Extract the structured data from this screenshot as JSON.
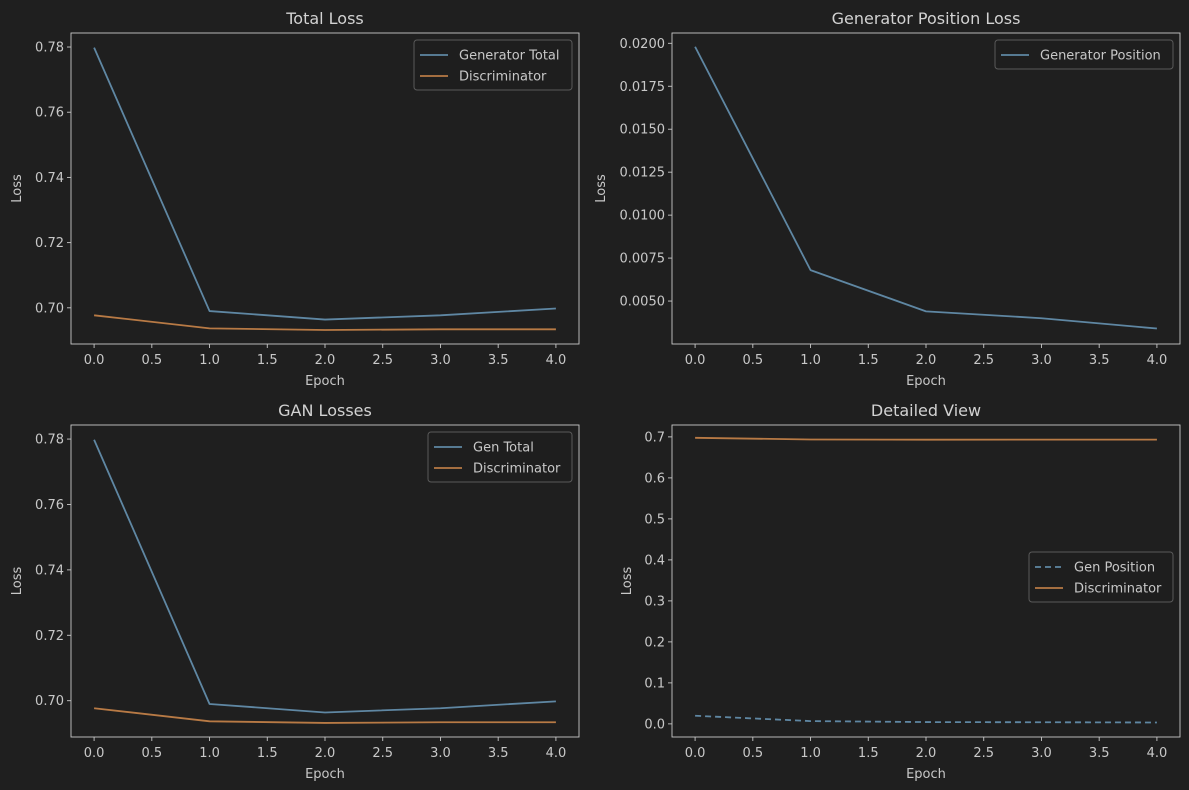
{
  "colors": {
    "background": "#1f1f1f",
    "axes_frame": "#c8c8c8",
    "text": "#c8c8c8",
    "title": "#d2d2d2",
    "legend_bg": "#1f1f1f",
    "legend_border": "#5a5a5a",
    "blue": "#5f87a3",
    "orange": "#b87a45"
  },
  "chart_data": [
    {
      "type": "line",
      "title": "Total Loss",
      "xlabel": "Epoch",
      "ylabel": "Loss",
      "x": [
        0,
        1,
        2,
        3,
        4
      ],
      "xlim": [
        -0.2,
        4.2
      ],
      "ylim": [
        0.6889,
        0.7843
      ],
      "xticks": [
        0.0,
        0.5,
        1.0,
        1.5,
        2.0,
        2.5,
        3.0,
        3.5,
        4.0
      ],
      "xtick_labels": [
        "0.0",
        "0.5",
        "1.0",
        "1.5",
        "2.0",
        "2.5",
        "3.0",
        "3.5",
        "4.0"
      ],
      "yticks": [
        0.7,
        0.72,
        0.74,
        0.76,
        0.78
      ],
      "ytick_labels": [
        "0.70",
        "0.72",
        "0.74",
        "0.76",
        "0.78"
      ],
      "grid": false,
      "legend": "upper right",
      "series": [
        {
          "name": "Generator Total",
          "values": [
            0.7798,
            0.699,
            0.6964,
            0.6977,
            0.6998
          ],
          "color": "blue",
          "style": "solid"
        },
        {
          "name": "Discriminator",
          "values": [
            0.6977,
            0.6937,
            0.6932,
            0.6934,
            0.6934
          ],
          "color": "orange",
          "style": "solid"
        }
      ]
    },
    {
      "type": "line",
      "title": "Generator Position Loss",
      "xlabel": "Epoch",
      "ylabel": "Loss",
      "x": [
        0,
        1,
        2,
        3,
        4
      ],
      "xlim": [
        -0.2,
        4.2
      ],
      "ylim": [
        0.0025,
        0.0206
      ],
      "xticks": [
        0.0,
        0.5,
        1.0,
        1.5,
        2.0,
        2.5,
        3.0,
        3.5,
        4.0
      ],
      "xtick_labels": [
        "0.0",
        "0.5",
        "1.0",
        "1.5",
        "2.0",
        "2.5",
        "3.0",
        "3.5",
        "4.0"
      ],
      "yticks": [
        0.005,
        0.0075,
        0.01,
        0.0125,
        0.015,
        0.0175,
        0.02
      ],
      "ytick_labels": [
        "0.0050",
        "0.0075",
        "0.0100",
        "0.0125",
        "0.0150",
        "0.0175",
        "0.0200"
      ],
      "grid": false,
      "legend": "upper right",
      "series": [
        {
          "name": "Generator Position",
          "values": [
            0.0198,
            0.0068,
            0.0044,
            0.004,
            0.0034
          ],
          "color": "blue",
          "style": "solid"
        }
      ]
    },
    {
      "type": "line",
      "title": "GAN Losses",
      "xlabel": "Epoch",
      "ylabel": "Loss",
      "x": [
        0,
        1,
        2,
        3,
        4
      ],
      "xlim": [
        -0.2,
        4.2
      ],
      "ylim": [
        0.6889,
        0.7843
      ],
      "xticks": [
        0.0,
        0.5,
        1.0,
        1.5,
        2.0,
        2.5,
        3.0,
        3.5,
        4.0
      ],
      "xtick_labels": [
        "0.0",
        "0.5",
        "1.0",
        "1.5",
        "2.0",
        "2.5",
        "3.0",
        "3.5",
        "4.0"
      ],
      "yticks": [
        0.7,
        0.72,
        0.74,
        0.76,
        0.78
      ],
      "ytick_labels": [
        "0.70",
        "0.72",
        "0.74",
        "0.76",
        "0.78"
      ],
      "grid": false,
      "legend": "upper right",
      "series": [
        {
          "name": "Gen Total",
          "values": [
            0.7798,
            0.699,
            0.6964,
            0.6977,
            0.6998
          ],
          "color": "blue",
          "style": "solid"
        },
        {
          "name": "Discriminator",
          "values": [
            0.6977,
            0.6937,
            0.6932,
            0.6934,
            0.6934
          ],
          "color": "orange",
          "style": "solid"
        }
      ]
    },
    {
      "type": "line",
      "title": "Detailed View",
      "xlabel": "Epoch",
      "ylabel": "Loss",
      "x": [
        0,
        1,
        2,
        3,
        4
      ],
      "xlim": [
        -0.2,
        4.2
      ],
      "ylim": [
        -0.032,
        0.729
      ],
      "xticks": [
        0.0,
        0.5,
        1.0,
        1.5,
        2.0,
        2.5,
        3.0,
        3.5,
        4.0
      ],
      "xtick_labels": [
        "0.0",
        "0.5",
        "1.0",
        "1.5",
        "2.0",
        "2.5",
        "3.0",
        "3.5",
        "4.0"
      ],
      "yticks": [
        0.0,
        0.1,
        0.2,
        0.3,
        0.4,
        0.5,
        0.6,
        0.7
      ],
      "ytick_labels": [
        "0.0",
        "0.1",
        "0.2",
        "0.3",
        "0.4",
        "0.5",
        "0.6",
        "0.7"
      ],
      "grid": false,
      "legend": "center right",
      "series": [
        {
          "name": "Gen Position",
          "values": [
            0.0198,
            0.0068,
            0.0044,
            0.004,
            0.0034
          ],
          "color": "blue",
          "style": "dashed"
        },
        {
          "name": "Discriminator",
          "values": [
            0.6977,
            0.6937,
            0.6932,
            0.6934,
            0.6934
          ],
          "color": "orange",
          "style": "solid"
        }
      ]
    }
  ]
}
